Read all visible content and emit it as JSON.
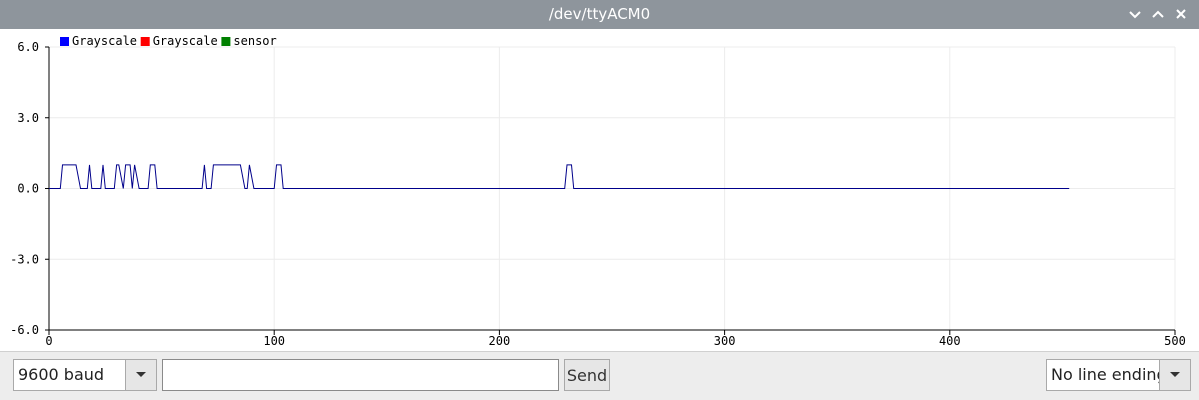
{
  "window": {
    "title": "/dev/ttyACM0",
    "controls": [
      "chevron-down-icon",
      "chevron-up-icon",
      "close-icon"
    ]
  },
  "chart_data": {
    "type": "line",
    "legend": [
      "Grayscale",
      "Grayscale",
      "sensor"
    ],
    "legend_placement": "top-left",
    "legend_colors": [
      "#0000ff",
      "#ff0000",
      "#008000"
    ],
    "series_color": "#00008b",
    "grid": true,
    "xlim": [
      0,
      500
    ],
    "ylim": [
      -6.0,
      6.0
    ],
    "xticks": [
      0,
      100,
      200,
      300,
      400,
      500
    ],
    "yticks": [
      "6.0",
      "3.0",
      "0.0",
      "-3.0",
      "-6.0"
    ],
    "series": [
      {
        "x": [
          0,
          5,
          6,
          12,
          14,
          17,
          18,
          19,
          23,
          24,
          25,
          29,
          30,
          31,
          33,
          34,
          36,
          37,
          38,
          40,
          44,
          45,
          47,
          48,
          68,
          69,
          70,
          72,
          73,
          85,
          87,
          88,
          89,
          91,
          92,
          100,
          101,
          103,
          104,
          229,
          230,
          232,
          233,
          453
        ],
        "y": [
          0,
          0,
          1,
          1,
          0,
          0,
          1,
          0,
          0,
          1,
          0,
          0,
          1,
          1,
          0,
          1,
          1,
          0,
          1,
          0,
          0,
          1,
          1,
          0,
          0,
          1,
          0,
          0,
          1,
          1,
          0,
          0,
          1,
          0,
          0,
          0,
          1,
          1,
          0,
          0,
          1,
          1,
          0,
          0
        ]
      }
    ]
  },
  "controls": {
    "baud": "9600 baud",
    "message_value": "",
    "send_label": "Send",
    "line_ending": "No line ending"
  }
}
